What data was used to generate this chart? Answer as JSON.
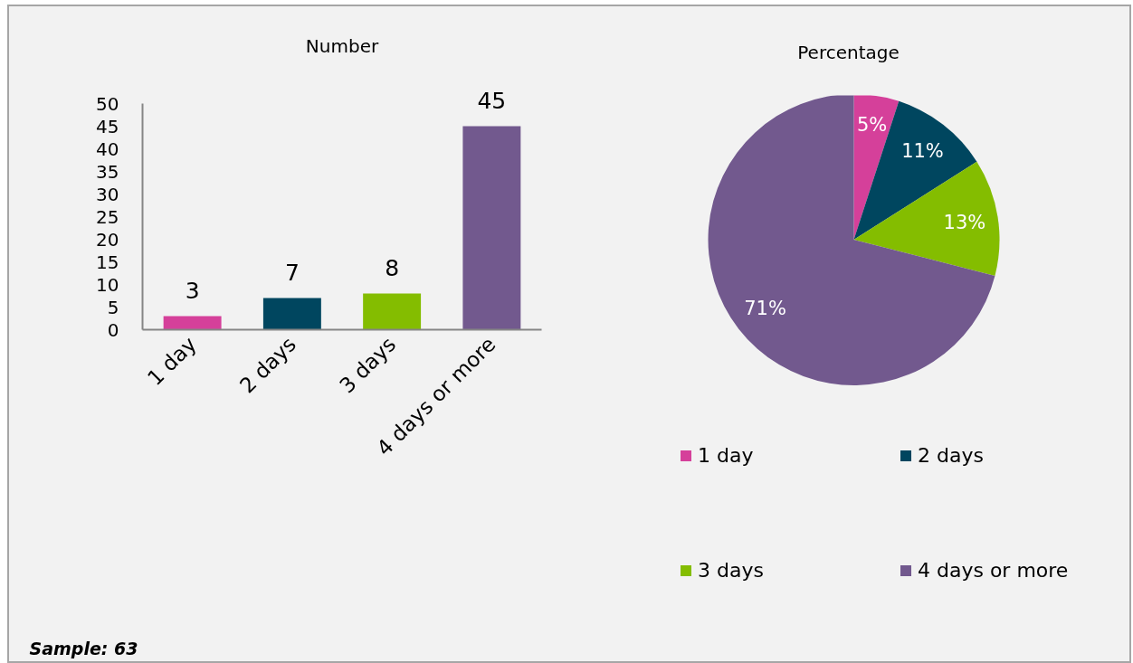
{
  "chart_data": [
    {
      "type": "bar",
      "title": "Number",
      "categories": [
        "1 day",
        "2 days",
        "3 days",
        "4 days or more"
      ],
      "values": [
        3,
        7,
        8,
        45
      ],
      "colors": [
        "#d5409a",
        "#00465f",
        "#84bd00",
        "#72598e"
      ],
      "ylim": [
        0,
        50
      ],
      "yticks": [
        0,
        5,
        10,
        15,
        20,
        25,
        30,
        35,
        40,
        45,
        50
      ],
      "data_labels": true,
      "annotations": [
        "Sample: 63"
      ]
    },
    {
      "type": "pie",
      "title": "Percentage",
      "categories": [
        "1 day",
        "2 days",
        "3 days",
        "4 days or more"
      ],
      "values": [
        5,
        11,
        13,
        71
      ],
      "colors": [
        "#d5409a",
        "#00465f",
        "#84bd00",
        "#72598e"
      ],
      "value_labels": [
        "5%",
        "11%",
        "13%",
        "71%"
      ],
      "legend": "bottom"
    }
  ]
}
